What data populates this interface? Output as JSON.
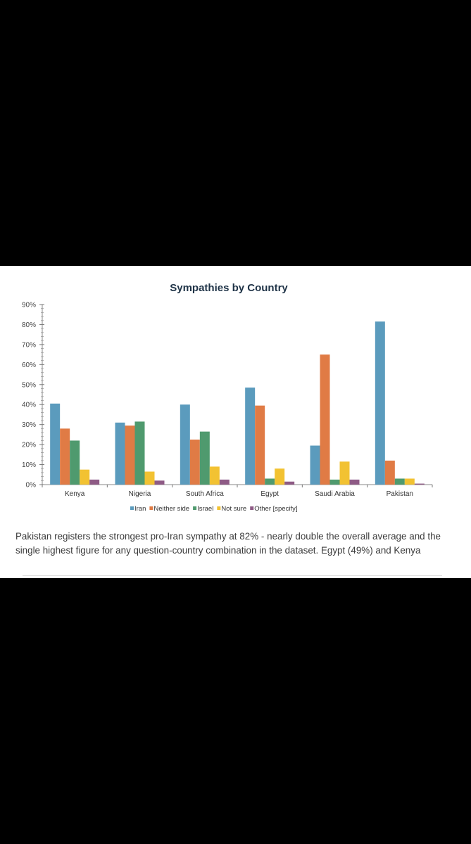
{
  "document": {
    "caption": "Pakistan registers the strongest pro-Iran sympathy at 82% - nearly double the overall average and the single highest figure for any question-country combination in the dataset. Egypt (49%) and Kenya"
  },
  "chart_data": {
    "type": "bar",
    "title": "Sympathies by Country",
    "xlabel": "",
    "ylabel": "",
    "categories": [
      "Kenya",
      "Nigeria",
      "South Africa",
      "Egypt",
      "Saudi Arabia",
      "Pakistan"
    ],
    "series": [
      {
        "name": "Iran",
        "color": "#5b9bbd",
        "values": [
          40.5,
          31,
          40,
          48.5,
          19.5,
          81.5
        ]
      },
      {
        "name": "Neither side",
        "color": "#e07b45",
        "values": [
          28,
          29.5,
          22.5,
          39.5,
          65,
          12
        ]
      },
      {
        "name": "Israel",
        "color": "#4f9a6e",
        "values": [
          22,
          31.5,
          26.5,
          3,
          2.5,
          3
        ]
      },
      {
        "name": "Not sure",
        "color": "#f2c232",
        "values": [
          7.5,
          6.5,
          9,
          8,
          11.5,
          3
        ]
      },
      {
        "name": "Other [specify]",
        "color": "#8e5a85",
        "values": [
          2.5,
          2,
          2.5,
          1.5,
          2.5,
          0.5
        ]
      }
    ],
    "ylim": [
      0,
      90
    ],
    "yticks": [
      "0%",
      "10%",
      "20%",
      "30%",
      "40%",
      "50%",
      "60%",
      "70%",
      "80%",
      "90%"
    ],
    "grid": false,
    "legend_position": "bottom"
  }
}
